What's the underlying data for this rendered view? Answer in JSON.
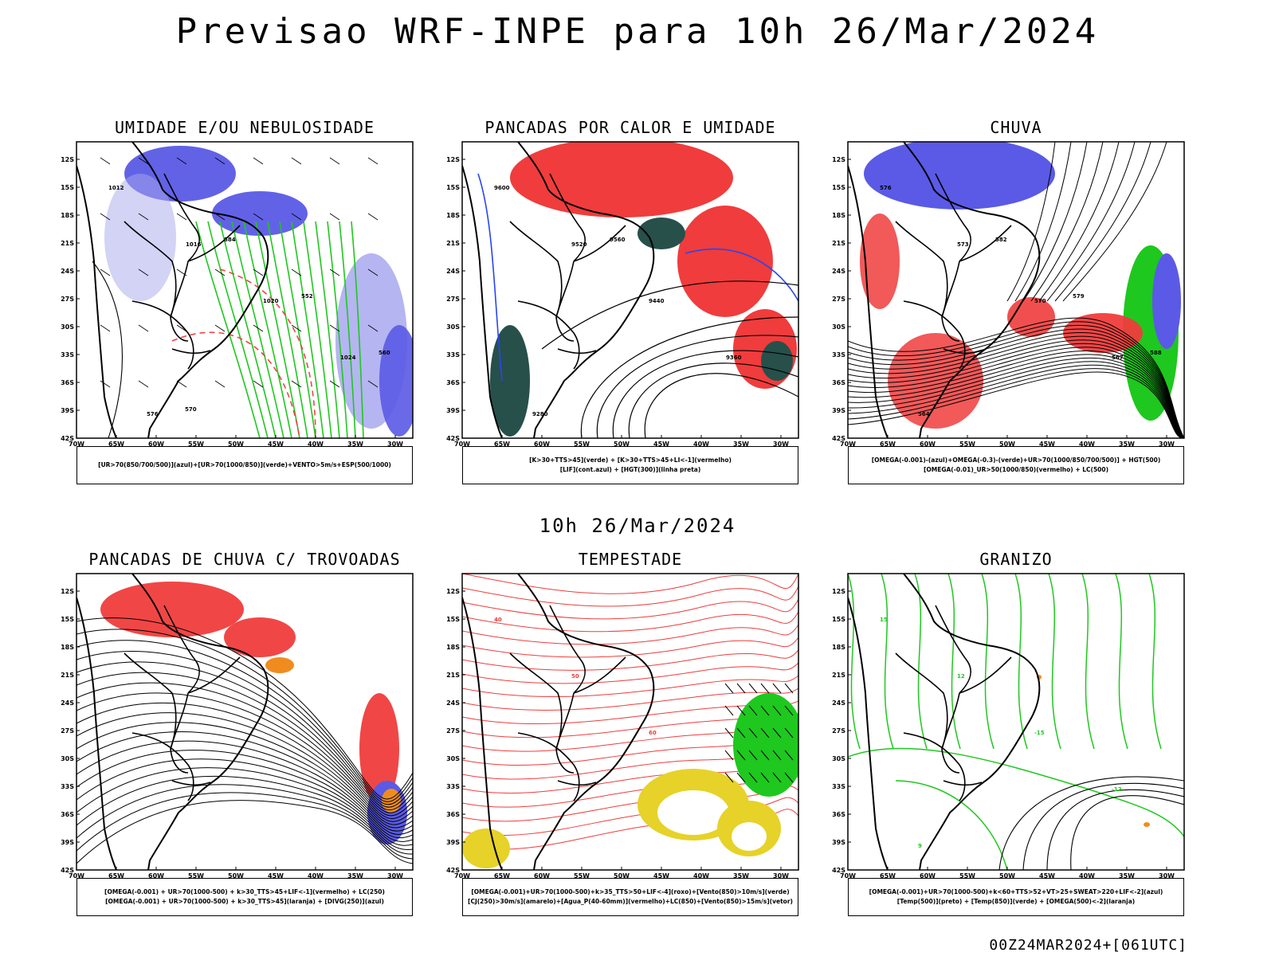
{
  "header": {
    "title": "Previsao WRF-INPE  para 10h 26/Mar/2024",
    "mid_date": "10h 26/Mar/2024",
    "footer": "00Z24MAR2024+[061UTC]"
  },
  "axes": {
    "lat_labels": [
      "12S",
      "15S",
      "18S",
      "21S",
      "24S",
      "27S",
      "30S",
      "33S",
      "36S",
      "39S",
      "42S"
    ],
    "lon_labels": [
      "70W",
      "65W",
      "60W",
      "55W",
      "50W",
      "45W",
      "40W",
      "35W",
      "30W"
    ]
  },
  "colors": {
    "humidity_blue": "#5a5ae6",
    "light_blue": "#a8a8ee",
    "green": "#1ec81e",
    "red": "#f03c3c",
    "dark_teal": "#27504a",
    "orange": "#f08c1e",
    "yellow": "#e6d228",
    "blue_line": "#2846f0"
  },
  "panels": [
    {
      "id": "umidade",
      "title": "UMIDADE E/OU NEBULOSIDADE",
      "legend": [
        "[UR>70(850/700/500)](azul)+[UR>70(1000/850)](verde)+VENTO>5m/s+ESP(500/1000)"
      ],
      "contour_labels": [
        "1012",
        "1016",
        "1020",
        "1024",
        "576",
        "584",
        "552",
        "560",
        "570"
      ]
    },
    {
      "id": "pancadas_calor",
      "title": "PANCADAS POR CALOR E UMIDADE",
      "legend": [
        "[K>30+TTS>45](verde) + [K>30+TTS>45+LI<-1](vermelho)",
        "[LIF](cont.azul) + [HGT(300)](linha preta)"
      ],
      "contour_labels": [
        "9600",
        "9520",
        "9440",
        "9360",
        "9280",
        "9560"
      ]
    },
    {
      "id": "chuva",
      "title": "CHUVA",
      "legend": [
        "[OMEGA(-0.001)-(azul)+OMEGA(-0.3)-(verde)+UR>70(1000/850/700/500)] + HGT(500)",
        "[OMEGA(-0.01)_UR>50(1000/850)(vermelho) + LC(500)"
      ],
      "contour_labels": [
        "576",
        "573",
        "570",
        "567",
        "564",
        "582",
        "579",
        "588"
      ]
    },
    {
      "id": "trovoadas",
      "title": "PANCADAS DE CHUVA C/ TROVOADAS",
      "legend": [
        "[OMEGA(-0.001) + UR>70(1000-500) + k>30_TTS>45+LIF<-1](vermelho) + LC(250)",
        "[OMEGA(-0.001) + UR>70(1000-500) + k>30_TTS>45](laranja) + [DIVG(250)](azul)"
      ],
      "contour_labels": []
    },
    {
      "id": "tempestade",
      "title": "TEMPESTADE",
      "legend": [
        "[OMEGA(-0.001)+UR>70(1000-500)+k>35_TTS>50+LIF<-4](roxo)+[Vento(850)>10m/s](verde)",
        "[CJ(250)>30m/s](amarelo)+[Agua_P(40-60mm)](vermelho)+LC(850)+[Vento(850)>15m/s](vetor)"
      ],
      "contour_labels": [
        "40",
        "50",
        "60"
      ]
    },
    {
      "id": "granizo",
      "title": "GRANIZO",
      "legend": [
        "[OMEGA(-0.001)+UR>70(1000-500)+k<60+TTS>52+VT>25+SWEAT>220+LIF<-2](azul)",
        "[Temp(500)](preto) + [Temp(850)](verde) + [OMEGA(500)<-2](laranja)"
      ],
      "contour_labels": [
        "15",
        "12",
        "-15",
        "-12",
        "9"
      ]
    }
  ]
}
